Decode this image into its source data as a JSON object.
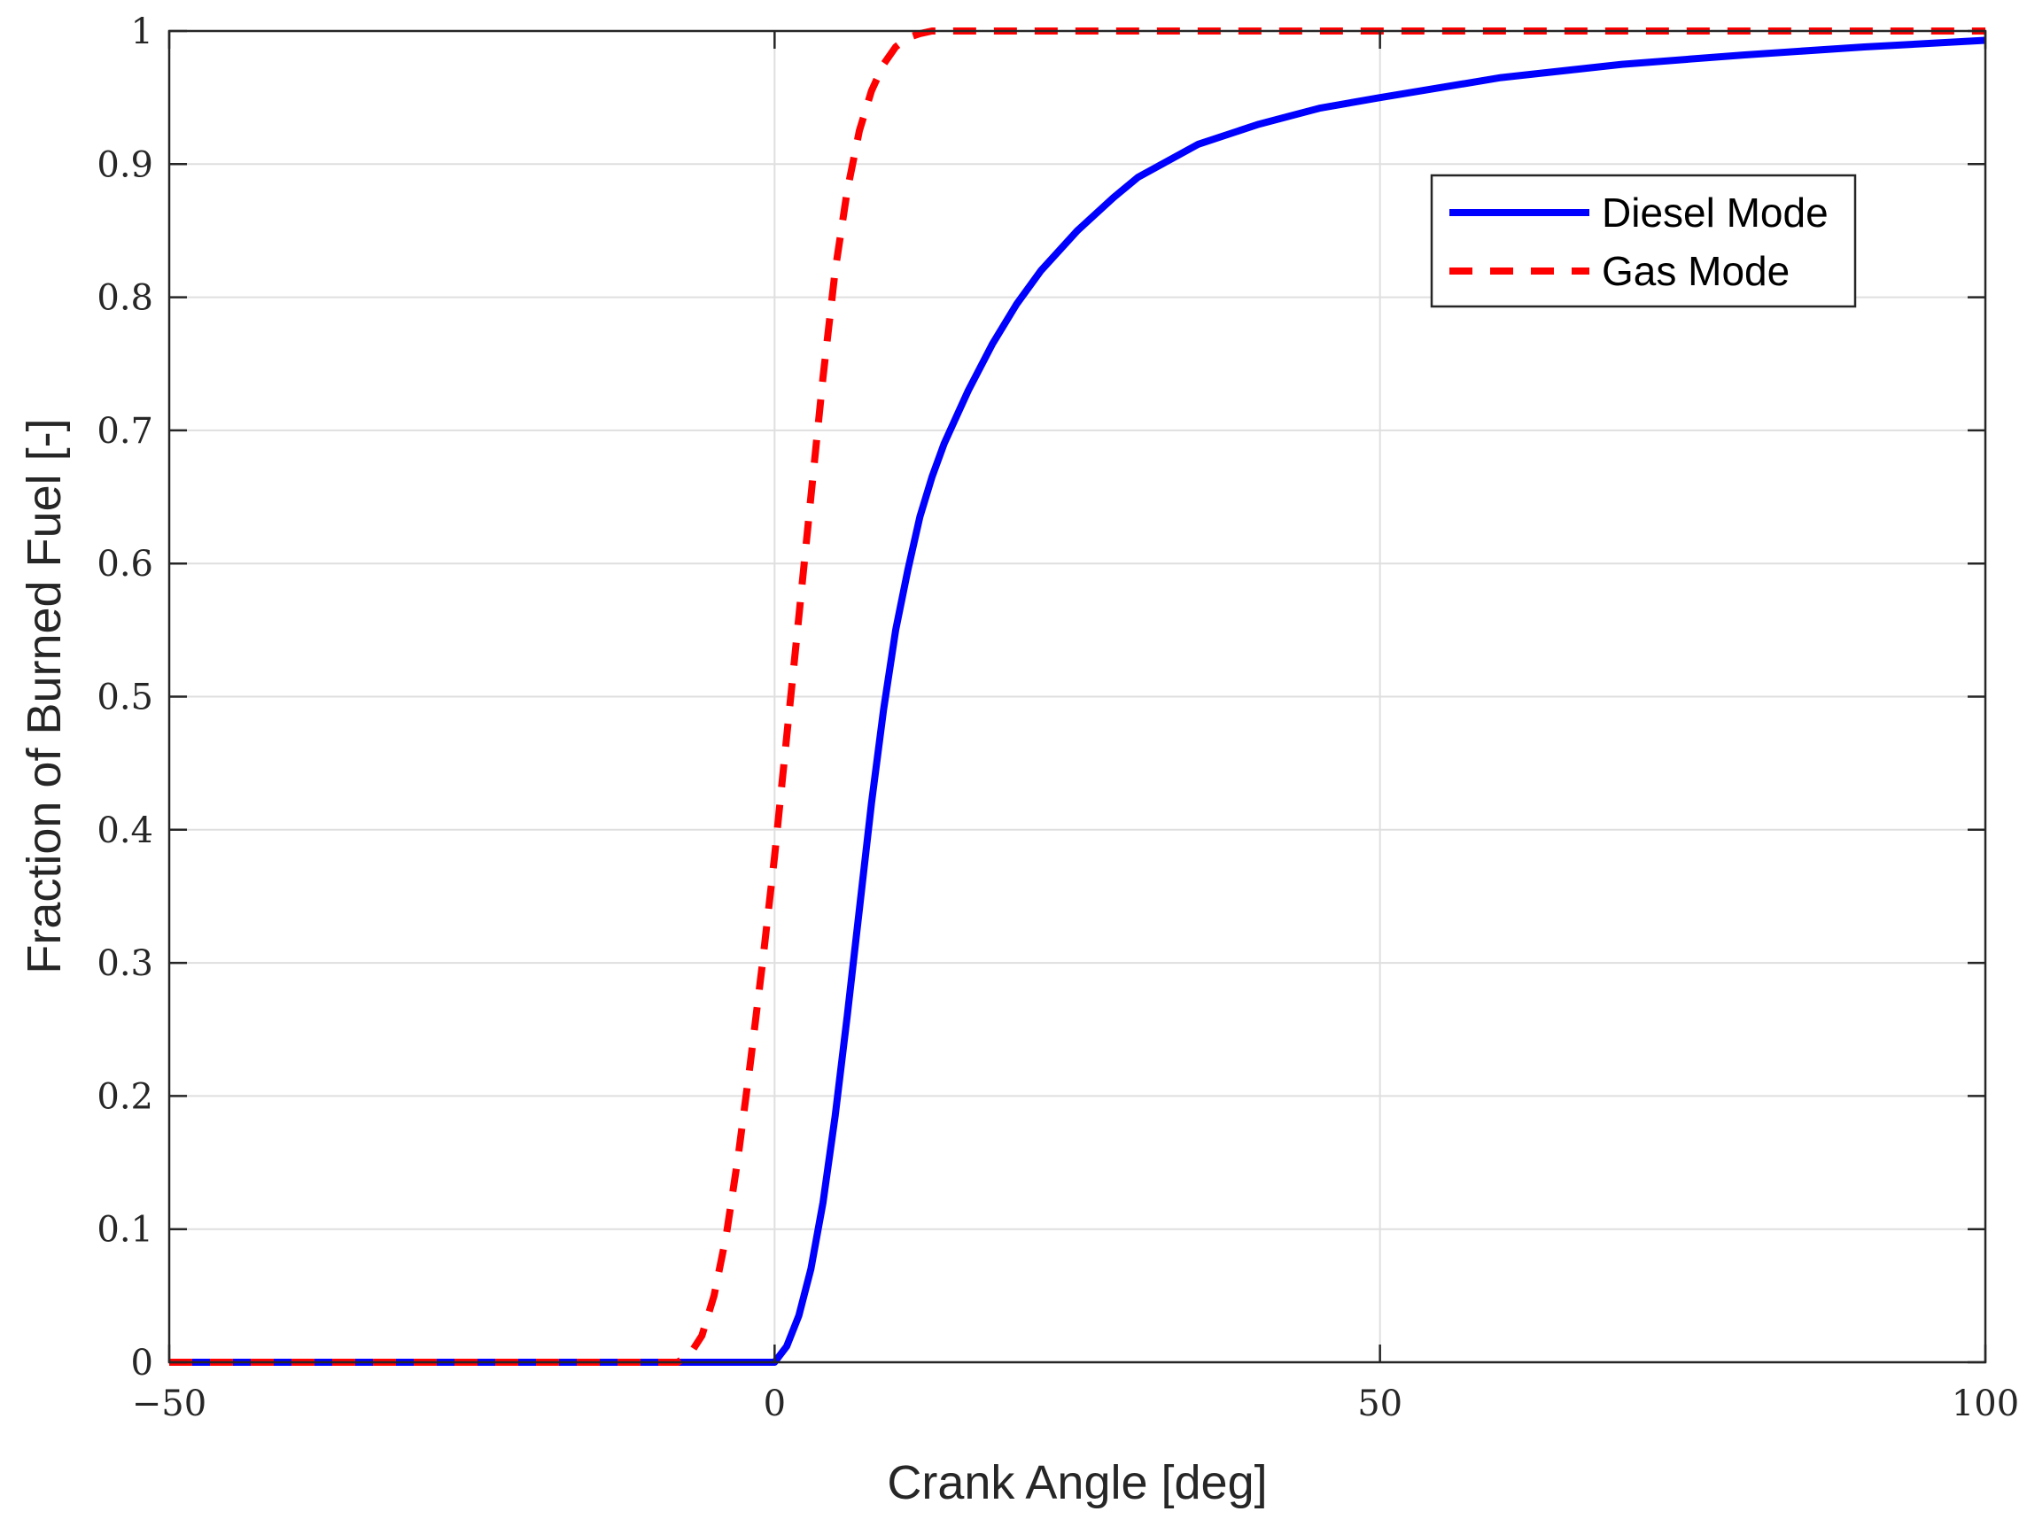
{
  "chart_data": {
    "type": "line",
    "xlabel": "Crank Angle [deg]",
    "ylabel": "Fraction of Burned Fuel [-]",
    "xlim": [
      -50,
      100
    ],
    "ylim": [
      0,
      1
    ],
    "xticks": [
      -50,
      0,
      50,
      100
    ],
    "xtick_labels": [
      "−50",
      "0",
      "50",
      "100"
    ],
    "yticks": [
      0,
      0.1,
      0.2,
      0.3,
      0.4,
      0.5,
      0.6,
      0.7,
      0.8,
      0.9,
      1
    ],
    "ytick_labels": [
      "0",
      "0.1",
      "0.2",
      "0.3",
      "0.4",
      "0.5",
      "0.6",
      "0.7",
      "0.8",
      "0.9",
      "1"
    ],
    "grid": true,
    "legend_position": "top-right",
    "series": [
      {
        "name": "Diesel Mode",
        "color": "#0000ff",
        "line_style": "solid",
        "x": [
          -50,
          -10,
          0,
          1,
          2,
          3,
          4,
          5,
          6,
          7,
          8,
          9,
          10,
          11,
          12,
          13,
          14,
          15,
          16,
          18,
          20,
          22,
          25,
          28,
          30,
          35,
          40,
          45,
          50,
          60,
          70,
          80,
          90,
          100
        ],
        "y": [
          0,
          0,
          0,
          0.012,
          0.035,
          0.07,
          0.12,
          0.185,
          0.26,
          0.34,
          0.42,
          0.49,
          0.55,
          0.595,
          0.635,
          0.665,
          0.69,
          0.71,
          0.73,
          0.765,
          0.795,
          0.82,
          0.85,
          0.875,
          0.89,
          0.915,
          0.93,
          0.942,
          0.95,
          0.965,
          0.975,
          0.982,
          0.988,
          0.993
        ]
      },
      {
        "name": "Gas Mode",
        "color": "#ff0000",
        "line_style": "dashed",
        "x": [
          -50,
          -8,
          -7,
          -6,
          -5,
          -4,
          -3,
          -2,
          -1,
          0,
          1,
          2,
          3,
          4,
          5,
          6,
          7,
          8,
          9,
          10,
          11,
          12,
          13,
          14,
          100
        ],
        "y": [
          0,
          0,
          0.006,
          0.02,
          0.05,
          0.095,
          0.155,
          0.225,
          0.3,
          0.38,
          0.47,
          0.56,
          0.65,
          0.74,
          0.82,
          0.88,
          0.925,
          0.955,
          0.975,
          0.988,
          0.995,
          0.998,
          1.0,
          1.0,
          1.0
        ]
      }
    ]
  }
}
